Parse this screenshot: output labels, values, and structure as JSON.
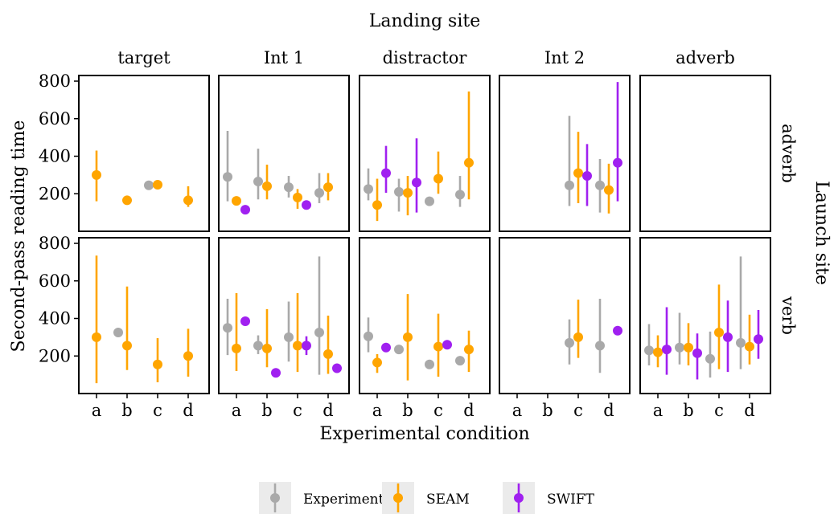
{
  "chart_data": {
    "type": "scatter",
    "title": "Landing site",
    "xlabel": "Experimental condition",
    "ylabel": "Second-pass reading time",
    "row_strip_title": "Launch site",
    "categories": [
      "a",
      "b",
      "c",
      "d"
    ],
    "ylim": [
      0,
      830
    ],
    "yticks": [
      200,
      400,
      600,
      800
    ],
    "columns": [
      "target",
      "Int 1",
      "distractor",
      "Int 2",
      "adverb"
    ],
    "rows": [
      "adverb",
      "verb"
    ],
    "series_styles": [
      {
        "key": "Experiment",
        "color": "#A9A9A9"
      },
      {
        "key": "SEAM",
        "color": "#FFA500"
      },
      {
        "key": "SWIFT",
        "color": "#A020F0"
      }
    ],
    "legend": {
      "position": "bottom",
      "labels": [
        "Experiment",
        "SEAM",
        "SWIFT"
      ]
    },
    "panels": [
      {
        "row": "adverb",
        "column": "target",
        "points": [
          {
            "cond": "a",
            "series": "SEAM",
            "y": 300,
            "lo": 160,
            "hi": 430
          },
          {
            "cond": "b",
            "series": "SEAM",
            "y": 165,
            "lo": null,
            "hi": null
          },
          {
            "cond": "c",
            "series": "Experiment",
            "y": 245,
            "lo": null,
            "hi": null
          },
          {
            "cond": "c",
            "series": "SEAM",
            "y": 248,
            "lo": null,
            "hi": null
          },
          {
            "cond": "d",
            "series": "SEAM",
            "y": 165,
            "lo": 130,
            "hi": 240
          }
        ]
      },
      {
        "row": "adverb",
        "column": "Int 1",
        "points": [
          {
            "cond": "a",
            "series": "Experiment",
            "y": 290,
            "lo": 160,
            "hi": 535
          },
          {
            "cond": "a",
            "series": "SEAM",
            "y": 162,
            "lo": 150,
            "hi": 170
          },
          {
            "cond": "a",
            "series": "SWIFT",
            "y": 115,
            "lo": null,
            "hi": null
          },
          {
            "cond": "b",
            "series": "Experiment",
            "y": 265,
            "lo": 170,
            "hi": 440
          },
          {
            "cond": "b",
            "series": "SEAM",
            "y": 240,
            "lo": 170,
            "hi": 355
          },
          {
            "cond": "c",
            "series": "Experiment",
            "y": 235,
            "lo": 180,
            "hi": 295
          },
          {
            "cond": "c",
            "series": "SEAM",
            "y": 180,
            "lo": 120,
            "hi": 225
          },
          {
            "cond": "c",
            "series": "SWIFT",
            "y": 140,
            "lo": null,
            "hi": null
          },
          {
            "cond": "d",
            "series": "Experiment",
            "y": 205,
            "lo": 150,
            "hi": 310
          },
          {
            "cond": "d",
            "series": "SEAM",
            "y": 235,
            "lo": 165,
            "hi": 310
          }
        ]
      },
      {
        "row": "adverb",
        "column": "distractor",
        "points": [
          {
            "cond": "a",
            "series": "Experiment",
            "y": 225,
            "lo": 165,
            "hi": 335
          },
          {
            "cond": "a",
            "series": "SEAM",
            "y": 140,
            "lo": 55,
            "hi": 280
          },
          {
            "cond": "a",
            "series": "SWIFT",
            "y": 310,
            "lo": 205,
            "hi": 455
          },
          {
            "cond": "b",
            "series": "Experiment",
            "y": 210,
            "lo": 105,
            "hi": 280
          },
          {
            "cond": "b",
            "series": "SEAM",
            "y": 205,
            "lo": 85,
            "hi": 295
          },
          {
            "cond": "b",
            "series": "SWIFT",
            "y": 260,
            "lo": 100,
            "hi": 495
          },
          {
            "cond": "c",
            "series": "Experiment",
            "y": 160,
            "lo": null,
            "hi": null
          },
          {
            "cond": "c",
            "series": "SEAM",
            "y": 280,
            "lo": 200,
            "hi": 425
          },
          {
            "cond": "d",
            "series": "Experiment",
            "y": 195,
            "lo": 130,
            "hi": 295
          },
          {
            "cond": "d",
            "series": "SEAM",
            "y": 365,
            "lo": 170,
            "hi": 745
          }
        ]
      },
      {
        "row": "adverb",
        "column": "Int 2",
        "points": [
          {
            "cond": "c",
            "series": "Experiment",
            "y": 245,
            "lo": 135,
            "hi": 615
          },
          {
            "cond": "c",
            "series": "SEAM",
            "y": 310,
            "lo": 150,
            "hi": 530
          },
          {
            "cond": "c",
            "series": "SWIFT",
            "y": 295,
            "lo": 135,
            "hi": 465
          },
          {
            "cond": "d",
            "series": "Experiment",
            "y": 245,
            "lo": 100,
            "hi": 385
          },
          {
            "cond": "d",
            "series": "SEAM",
            "y": 220,
            "lo": 95,
            "hi": 360
          },
          {
            "cond": "d",
            "series": "SWIFT",
            "y": 365,
            "lo": 160,
            "hi": 795
          }
        ]
      },
      {
        "row": "adverb",
        "column": "adverb",
        "points": []
      },
      {
        "row": "verb",
        "column": "target",
        "points": [
          {
            "cond": "a",
            "series": "SEAM",
            "y": 300,
            "lo": 55,
            "hi": 735
          },
          {
            "cond": "b",
            "series": "Experiment",
            "y": 325,
            "lo": null,
            "hi": null
          },
          {
            "cond": "b",
            "series": "SEAM",
            "y": 255,
            "lo": 125,
            "hi": 570
          },
          {
            "cond": "c",
            "series": "SEAM",
            "y": 155,
            "lo": 60,
            "hi": 295
          },
          {
            "cond": "d",
            "series": "SEAM",
            "y": 200,
            "lo": 90,
            "hi": 345
          }
        ]
      },
      {
        "row": "verb",
        "column": "Int 1",
        "points": [
          {
            "cond": "a",
            "series": "Experiment",
            "y": 350,
            "lo": 205,
            "hi": 505
          },
          {
            "cond": "a",
            "series": "SEAM",
            "y": 240,
            "lo": 120,
            "hi": 535
          },
          {
            "cond": "a",
            "series": "SWIFT",
            "y": 385,
            "lo": null,
            "hi": null
          },
          {
            "cond": "b",
            "series": "Experiment",
            "y": 255,
            "lo": 210,
            "hi": 310
          },
          {
            "cond": "b",
            "series": "SEAM",
            "y": 240,
            "lo": 140,
            "hi": 450
          },
          {
            "cond": "b",
            "series": "SWIFT",
            "y": 110,
            "lo": null,
            "hi": null
          },
          {
            "cond": "c",
            "series": "Experiment",
            "y": 300,
            "lo": 170,
            "hi": 490
          },
          {
            "cond": "c",
            "series": "SEAM",
            "y": 255,
            "lo": 115,
            "hi": 535
          },
          {
            "cond": "c",
            "series": "SWIFT",
            "y": 255,
            "lo": 205,
            "hi": 305
          },
          {
            "cond": "d",
            "series": "Experiment",
            "y": 325,
            "lo": 100,
            "hi": 730
          },
          {
            "cond": "d",
            "series": "SEAM",
            "y": 210,
            "lo": 105,
            "hi": 415
          },
          {
            "cond": "d",
            "series": "SWIFT",
            "y": 135,
            "lo": null,
            "hi": null
          }
        ]
      },
      {
        "row": "verb",
        "column": "distractor",
        "points": [
          {
            "cond": "a",
            "series": "Experiment",
            "y": 305,
            "lo": 220,
            "hi": 405
          },
          {
            "cond": "a",
            "series": "SEAM",
            "y": 165,
            "lo": 110,
            "hi": 210
          },
          {
            "cond": "a",
            "series": "SWIFT",
            "y": 245,
            "lo": null,
            "hi": null
          },
          {
            "cond": "b",
            "series": "Experiment",
            "y": 235,
            "lo": null,
            "hi": null
          },
          {
            "cond": "b",
            "series": "SEAM",
            "y": 300,
            "lo": 70,
            "hi": 530
          },
          {
            "cond": "c",
            "series": "Experiment",
            "y": 155,
            "lo": null,
            "hi": null
          },
          {
            "cond": "c",
            "series": "SEAM",
            "y": 250,
            "lo": 90,
            "hi": 425
          },
          {
            "cond": "c",
            "series": "SWIFT",
            "y": 260,
            "lo": null,
            "hi": null
          },
          {
            "cond": "d",
            "series": "Experiment",
            "y": 175,
            "lo": null,
            "hi": null
          },
          {
            "cond": "d",
            "series": "SEAM",
            "y": 235,
            "lo": 115,
            "hi": 335
          }
        ]
      },
      {
        "row": "verb",
        "column": "Int 2",
        "points": [
          {
            "cond": "c",
            "series": "Experiment",
            "y": 270,
            "lo": 155,
            "hi": 395
          },
          {
            "cond": "c",
            "series": "SEAM",
            "y": 300,
            "lo": 190,
            "hi": 500
          },
          {
            "cond": "d",
            "series": "Experiment",
            "y": 255,
            "lo": 110,
            "hi": 505
          },
          {
            "cond": "d",
            "series": "SWIFT",
            "y": 335,
            "lo": null,
            "hi": null
          }
        ]
      },
      {
        "row": "verb",
        "column": "adverb",
        "points": [
          {
            "cond": "a",
            "series": "Experiment",
            "y": 230,
            "lo": 150,
            "hi": 370
          },
          {
            "cond": "a",
            "series": "SEAM",
            "y": 220,
            "lo": 140,
            "hi": 310
          },
          {
            "cond": "a",
            "series": "SWIFT",
            "y": 235,
            "lo": 100,
            "hi": 460
          },
          {
            "cond": "b",
            "series": "Experiment",
            "y": 245,
            "lo": 155,
            "hi": 430
          },
          {
            "cond": "b",
            "series": "SEAM",
            "y": 245,
            "lo": 150,
            "hi": 375
          },
          {
            "cond": "b",
            "series": "SWIFT",
            "y": 215,
            "lo": 75,
            "hi": 320
          },
          {
            "cond": "c",
            "series": "Experiment",
            "y": 185,
            "lo": 85,
            "hi": 330
          },
          {
            "cond": "c",
            "series": "SEAM",
            "y": 325,
            "lo": 130,
            "hi": 580
          },
          {
            "cond": "c",
            "series": "SWIFT",
            "y": 300,
            "lo": 115,
            "hi": 495
          },
          {
            "cond": "d",
            "series": "Experiment",
            "y": 270,
            "lo": 130,
            "hi": 730
          },
          {
            "cond": "d",
            "series": "SEAM",
            "y": 250,
            "lo": 155,
            "hi": 420
          },
          {
            "cond": "d",
            "series": "SWIFT",
            "y": 290,
            "lo": 185,
            "hi": 445
          }
        ]
      }
    ]
  }
}
